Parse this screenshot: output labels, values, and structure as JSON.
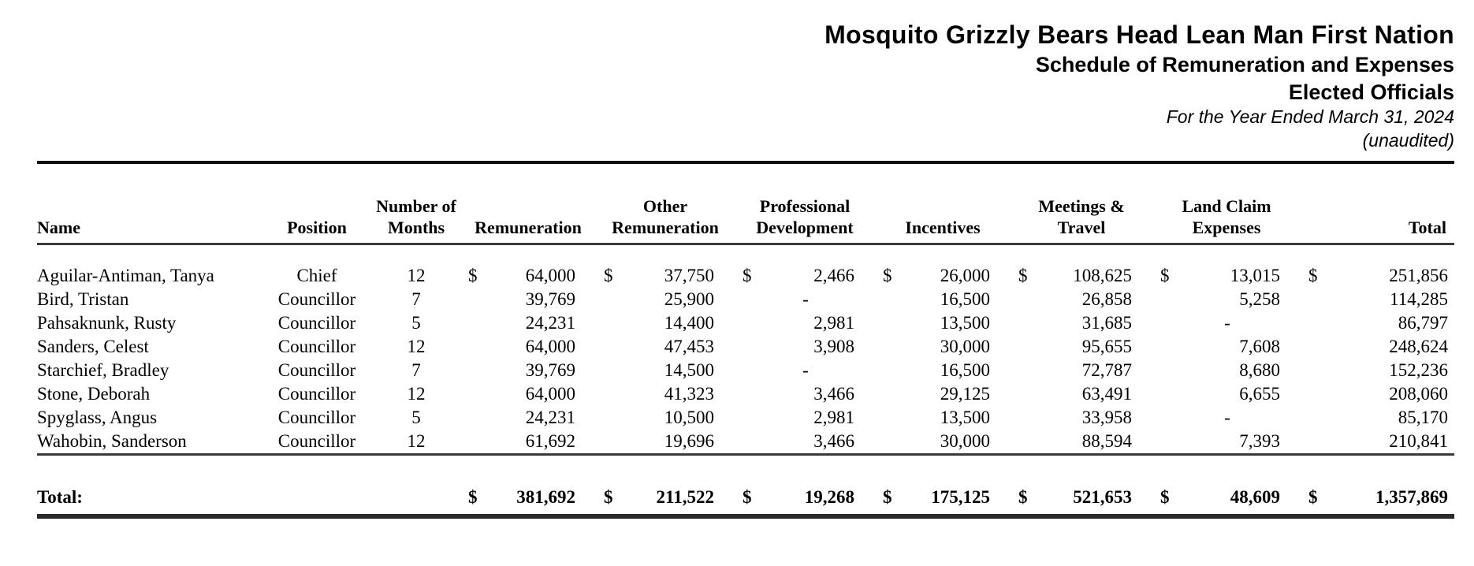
{
  "header": {
    "title": "Mosquito Grizzly Bears Head Lean Man First Nation",
    "subtitle1": "Schedule of Remuneration and Expenses",
    "subtitle2": "Elected Officials",
    "period": "For the Year Ended March 31, 2024",
    "audit_status": "(unaudited)"
  },
  "currency_symbol": "$",
  "table": {
    "columns": [
      {
        "l1": "",
        "l2": "Name"
      },
      {
        "l1": "",
        "l2": "Position"
      },
      {
        "l1": "Number of",
        "l2": "Months"
      },
      {
        "l1": "",
        "l2": "Remuneration"
      },
      {
        "l1": "Other",
        "l2": "Remuneration"
      },
      {
        "l1": "Professional",
        "l2": "Development"
      },
      {
        "l1": "",
        "l2": "Incentives"
      },
      {
        "l1": "Meetings &",
        "l2": "Travel"
      },
      {
        "l1": "Land Claim",
        "l2": "Expenses"
      },
      {
        "l1": "",
        "l2": "Total"
      }
    ],
    "rows": [
      {
        "name": "Aguilar-Antiman, Tanya",
        "position": "Chief",
        "months": "12",
        "currency": true,
        "values": [
          "64,000",
          "37,750",
          "2,466",
          "26,000",
          "108,625",
          "13,015",
          "251,856"
        ]
      },
      {
        "name": "Bird, Tristan",
        "position": "Councillor",
        "months": "7",
        "currency": false,
        "values": [
          "39,769",
          "25,900",
          "-",
          "16,500",
          "26,858",
          "5,258",
          "114,285"
        ]
      },
      {
        "name": "Pahsaknunk, Rusty",
        "position": "Councillor",
        "months": "5",
        "currency": false,
        "values": [
          "24,231",
          "14,400",
          "2,981",
          "13,500",
          "31,685",
          "-",
          "86,797"
        ]
      },
      {
        "name": "Sanders, Celest",
        "position": "Councillor",
        "months": "12",
        "currency": false,
        "values": [
          "64,000",
          "47,453",
          "3,908",
          "30,000",
          "95,655",
          "7,608",
          "248,624"
        ]
      },
      {
        "name": "Starchief, Bradley",
        "position": "Councillor",
        "months": "7",
        "currency": false,
        "values": [
          "39,769",
          "14,500",
          "-",
          "16,500",
          "72,787",
          "8,680",
          "152,236"
        ]
      },
      {
        "name": "Stone, Deborah",
        "position": "Councillor",
        "months": "12",
        "currency": false,
        "values": [
          "64,000",
          "41,323",
          "3,466",
          "29,125",
          "63,491",
          "6,655",
          "208,060"
        ]
      },
      {
        "name": "Spyglass, Angus",
        "position": "Councillor",
        "months": "5",
        "currency": false,
        "values": [
          "24,231",
          "10,500",
          "2,981",
          "13,500",
          "33,958",
          "-",
          "85,170"
        ]
      },
      {
        "name": "Wahobin, Sanderson",
        "position": "Councillor",
        "months": "12",
        "currency": false,
        "values": [
          "61,692",
          "19,696",
          "3,466",
          "30,000",
          "88,594",
          "7,393",
          "210,841"
        ]
      }
    ],
    "total_label": "Total:",
    "total_values": [
      "381,692",
      "211,522",
      "19,268",
      "175,125",
      "521,653",
      "48,609",
      "1,357,869"
    ]
  }
}
